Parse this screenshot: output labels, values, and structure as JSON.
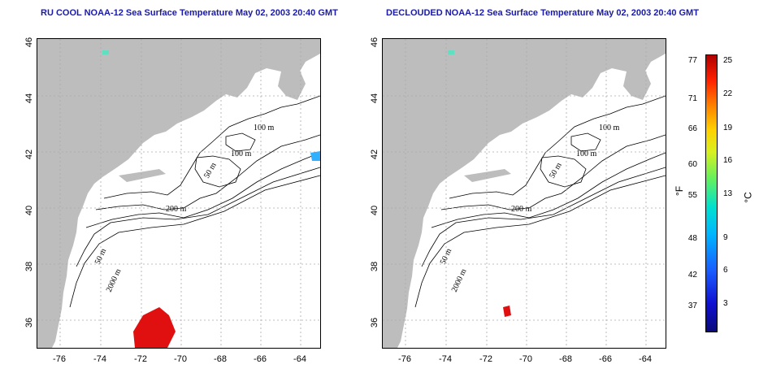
{
  "left_map": {
    "title": "RU COOL NOAA-12 Sea Surface Temperature May 02, 2003 20:40 GMT",
    "contour_labels": [
      "100 m",
      "100 m",
      "50 m",
      "200 m",
      "50 m",
      "2000 m"
    ]
  },
  "right_map": {
    "title": "DECLOUDED NOAA-12 Sea Surface Temperature May 02, 2003 20:40 GMT",
    "contour_labels": [
      "100 m",
      "100 m",
      "50 m",
      "200 m",
      "50 m",
      "2000 m"
    ]
  },
  "axes": {
    "y_ticks": [
      "46",
      "44",
      "42",
      "40",
      "38",
      "36"
    ],
    "x_ticks": [
      "-76",
      "-74",
      "-72",
      "-70",
      "-68",
      "-66",
      "-64"
    ]
  },
  "colorbar": {
    "fahrenheit_ticks": [
      "77",
      "71",
      "66",
      "60",
      "55",
      "48",
      "42",
      "37"
    ],
    "celsius_ticks": [
      "25",
      "22",
      "19",
      "16",
      "13",
      "9",
      "6",
      "3"
    ],
    "unit_f": "°F",
    "unit_c": "°C",
    "colors": {
      "low": "#0a0a7a",
      "high": "#b00000"
    }
  }
}
